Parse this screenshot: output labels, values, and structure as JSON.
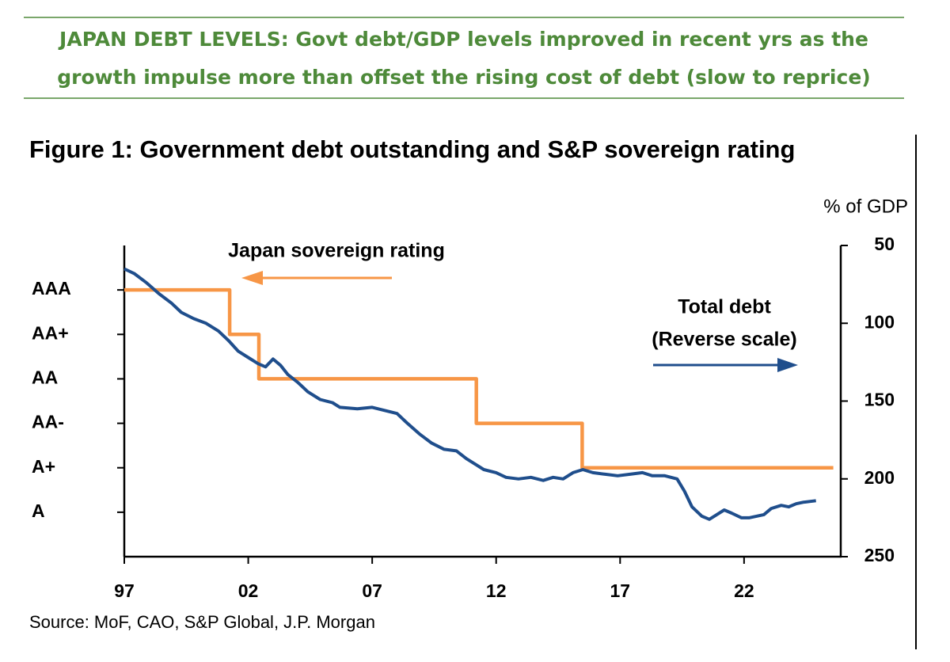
{
  "header": {
    "lines": [
      "JAPAN DEBT LEVELS: Govt debt/GDP levels improved in recent yrs as the",
      "growth impulse more than offset the rising cost of debt (slow to reprice)"
    ]
  },
  "chart_data": {
    "type": "line",
    "title": "Figure 1: Government debt outstanding and S&P sovereign rating",
    "y2_label": "% of GDP",
    "source": "Source: MoF, CAO, S&P Global, J.P. Morgan",
    "annotations": {
      "rating": "Japan sovereign rating",
      "debt_line1": "Total debt",
      "debt_line2": "(Reverse scale)"
    },
    "xlim": [
      1997,
      2025.9
    ],
    "xticks": [
      {
        "value": 1997,
        "label": "97"
      },
      {
        "value": 2002,
        "label": "02"
      },
      {
        "value": 2007,
        "label": "07"
      },
      {
        "value": 2012,
        "label": "12"
      },
      {
        "value": 2017,
        "label": "17"
      },
      {
        "value": 2022,
        "label": "22"
      }
    ],
    "ylim": [
      0,
      7
    ],
    "yticks": [
      {
        "value": 6,
        "label": "AAA"
      },
      {
        "value": 5,
        "label": "AA+"
      },
      {
        "value": 4,
        "label": "AA"
      },
      {
        "value": 3,
        "label": "AA-"
      },
      {
        "value": 2,
        "label": "A+"
      },
      {
        "value": 1,
        "label": "A"
      }
    ],
    "y2lim": [
      50,
      250
    ],
    "y2_inverted": true,
    "y2ticks": [
      50,
      100,
      150,
      200,
      250
    ],
    "series": [
      {
        "name": "Japan sovereign rating",
        "color": "#f79646",
        "axis": "y",
        "x": [
          1997,
          2001.25,
          2001.25,
          2002.43,
          2002.43,
          2011.2,
          2011.2,
          2015.47,
          2015.47,
          2025.6
        ],
        "values": [
          6,
          6,
          5,
          5,
          4,
          4,
          3,
          3,
          2,
          2
        ]
      },
      {
        "name": "Total debt",
        "color": "#1f4e8c",
        "axis": "y2",
        "x": [
          1997.0,
          1997.4,
          1997.9,
          1998.4,
          1998.9,
          1999.3,
          1999.8,
          2000.3,
          2000.8,
          2001.2,
          2001.6,
          2002.0,
          2002.4,
          2002.7,
          2003.0,
          2003.3,
          2003.6,
          2004.0,
          2004.4,
          2004.9,
          2005.4,
          2005.7,
          2006.4,
          2007.0,
          2007.5,
          2008.0,
          2008.4,
          2008.9,
          2009.4,
          2009.9,
          2010.4,
          2010.8,
          2011.2,
          2011.5,
          2012.0,
          2012.4,
          2012.9,
          2013.4,
          2013.9,
          2014.3,
          2014.7,
          2015.1,
          2015.5,
          2015.9,
          2016.4,
          2016.9,
          2017.4,
          2017.9,
          2018.3,
          2018.8,
          2019.3,
          2019.6,
          2019.9,
          2020.3,
          2020.6,
          2020.9,
          2021.2,
          2021.5,
          2021.9,
          2022.2,
          2022.5,
          2022.8,
          2023.1,
          2023.5,
          2023.8,
          2024.1,
          2024.4,
          2024.9
        ],
        "values": [
          65,
          68,
          74,
          81,
          87,
          93,
          97,
          100,
          105,
          111,
          118,
          122,
          126,
          128,
          123,
          127,
          133,
          138,
          144,
          149,
          151,
          154,
          155,
          154,
          156,
          158,
          164,
          171,
          177,
          181,
          182,
          187,
          191,
          194,
          196,
          199,
          200,
          199,
          201,
          199,
          200,
          196,
          194,
          196,
          197,
          198,
          197,
          196,
          198,
          198,
          200,
          208,
          218,
          224,
          226,
          223,
          220,
          222,
          225,
          225,
          224,
          223,
          219,
          217,
          218,
          216,
          215,
          214
        ]
      }
    ]
  }
}
